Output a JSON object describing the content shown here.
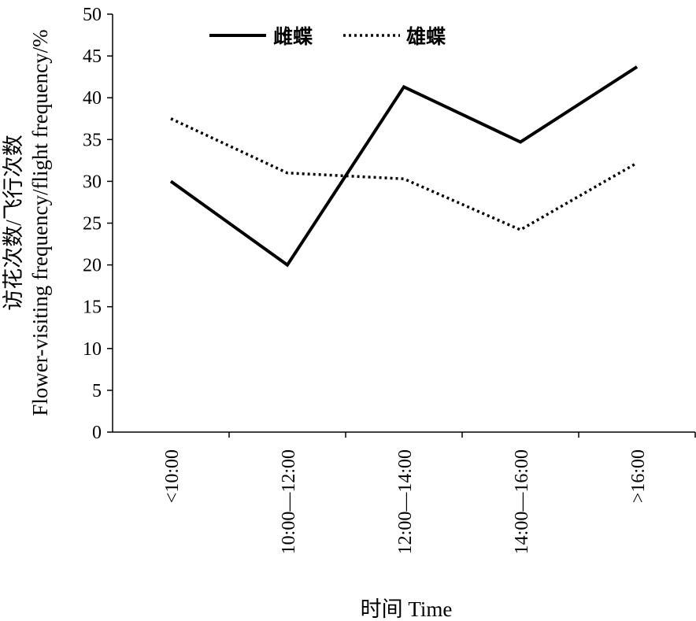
{
  "chart_data": {
    "type": "line",
    "categories": [
      "<10:00",
      "10:00—12:00",
      "12:00—14:00",
      "14:00—16:00",
      ">16:00"
    ],
    "series": [
      {
        "name": "雌蝶",
        "values": [
          30.0,
          20.0,
          41.3,
          34.7,
          43.7
        ],
        "style": "solid",
        "color": "#000000"
      },
      {
        "name": "雄蝶",
        "values": [
          37.5,
          31.0,
          30.3,
          24.2,
          32.2
        ],
        "style": "dotted",
        "color": "#000000"
      }
    ],
    "xlabel": "时间 Time",
    "ylabel_lines": [
      "访花次数/飞行次数",
      "Flower-visiting frequency/flight frequency/%"
    ],
    "ylim": [
      0,
      50
    ],
    "yticks": [
      "0",
      "5",
      "10",
      "15",
      "20",
      "25",
      "30",
      "35",
      "40",
      "45",
      "50"
    ],
    "grid": false,
    "legend_position": "top-center"
  }
}
